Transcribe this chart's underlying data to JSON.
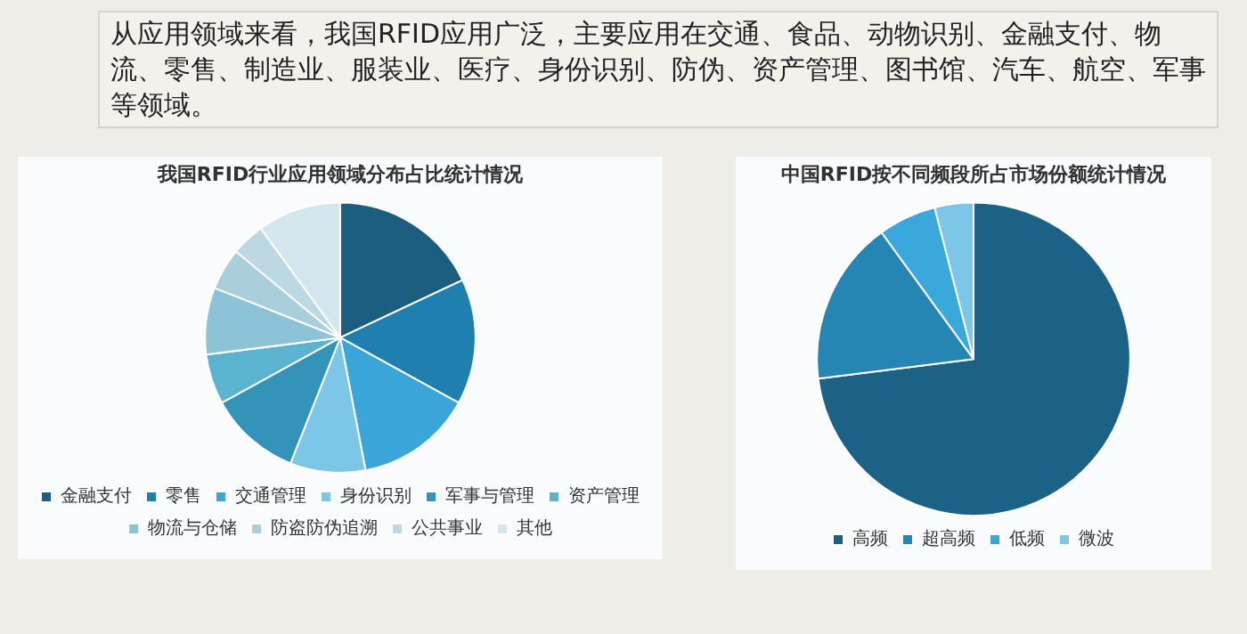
{
  "chart_data": [
    {
      "type": "other",
      "title": "从应用领域来看，我国RFID应用广泛，主要应用在交通、食品、动物识别、金融支付、物流、零售、制造业、服装业、医疗、身份识别、防伪、资产管理、图书馆、汽车、航空、军事等领域。"
    },
    {
      "type": "pie",
      "title": "我国RFID行业应用领域分布占比统计情况",
      "categories": [
        "金融支付",
        "零售",
        "交通管理",
        "身份识别",
        "军事与管理",
        "资产管理",
        "物流与仓储",
        "防盗防伪追溯",
        "公共事业",
        "其他"
      ],
      "values": [
        18,
        15,
        14,
        9,
        11,
        6,
        8,
        5,
        4,
        10
      ],
      "colors": [
        "#1b5e80",
        "#1f7fae",
        "#3aa5d8",
        "#7cc6e8",
        "#3393b8",
        "#5ab3cf",
        "#8cc3d6",
        "#a9cfdc",
        "#bcd8e2",
        "#d3e6ee"
      ],
      "legend": "bottom"
    },
    {
      "type": "pie",
      "title": "中国RFID按不同频段所占市场份额统计情况",
      "categories": [
        "高频",
        "超高频",
        "低频",
        "微波"
      ],
      "values": [
        73,
        17,
        6,
        4
      ],
      "colors": [
        "#1b6286",
        "#2585b3",
        "#3ba8dc",
        "#7cc7e8"
      ],
      "legend": "bottom"
    }
  ]
}
